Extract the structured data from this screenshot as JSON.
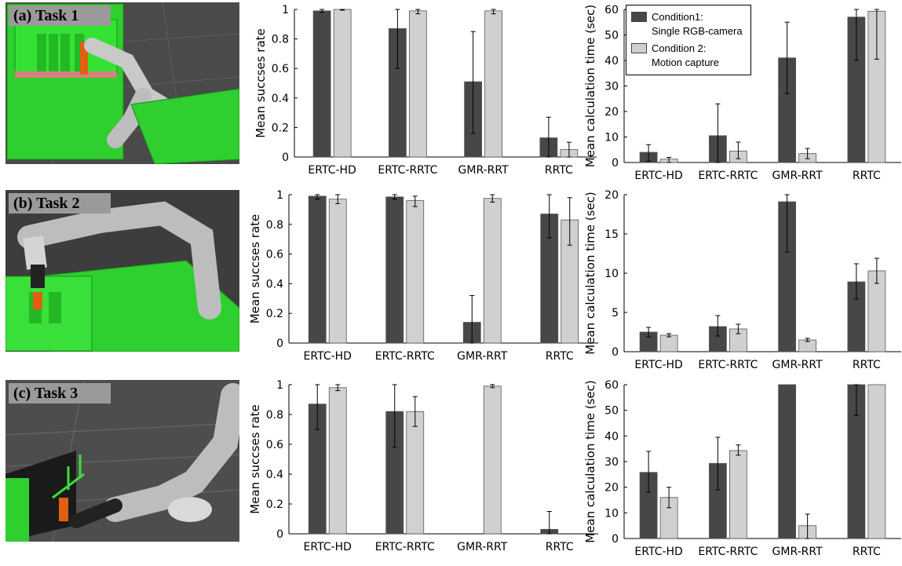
{
  "colors": {
    "condition1": "#474747",
    "condition2": "#d0d0d0"
  },
  "tasks": [
    {
      "label": "(a) Task 1",
      "scene": "robot-arm-bookshelf-scene"
    },
    {
      "label": "(b) Task 2",
      "scene": "robot-arm-box-scene"
    },
    {
      "label": "(c) Task 3",
      "scene": "robot-arm-wall-scene"
    }
  ],
  "legend": {
    "condition1_line1": "Condition1:",
    "condition1_line2": "Single RGB-camera",
    "condition2_line1": "Condition 2:",
    "condition2_line2": "Motion capture"
  },
  "chart_data": [
    {
      "type": "bar",
      "task": "(a) Task 1",
      "ylabel": "Mean succses rate",
      "ylim": [
        0,
        1
      ],
      "yticks": [
        0,
        0.2,
        0.4,
        0.6,
        0.8,
        1
      ],
      "ytick_labels": [
        "0",
        "0.2",
        "0.4",
        "0.6",
        "0.8",
        "1"
      ],
      "categories": [
        "ERTC-HD",
        "ERTC-RRTC",
        "GMR-RRT",
        "RRTC"
      ],
      "series": [
        {
          "name": "Condition1: Single RGB-camera",
          "values": [
            0.99,
            0.87,
            0.51,
            0.13
          ],
          "err_low": [
            0.98,
            0.6,
            0.16,
            0.0
          ],
          "err_high": [
            1.0,
            1.0,
            0.85,
            0.27
          ]
        },
        {
          "name": "Condition 2: Motion capture",
          "values": [
            1.0,
            0.99,
            0.99,
            0.05
          ],
          "err_low": [
            0.995,
            0.97,
            0.97,
            0.0
          ],
          "err_high": [
            1.0,
            1.0,
            1.0,
            0.1
          ]
        }
      ]
    },
    {
      "type": "bar",
      "task": "(a) Task 1",
      "ylabel": "Mean calculation time (sec)",
      "ylim": [
        0,
        60
      ],
      "yticks": [
        0,
        10,
        20,
        30,
        40,
        50,
        60
      ],
      "ytick_labels": [
        "0",
        "10",
        "20",
        "30",
        "40",
        "50",
        "60"
      ],
      "categories": [
        "ERTC-HD",
        "ERTC-RRTC",
        "GMR-RRT",
        "RRTC"
      ],
      "series": [
        {
          "name": "Condition1: Single RGB-camera",
          "values": [
            4,
            10.5,
            41,
            57
          ],
          "err_low": [
            0.5,
            0,
            27,
            40
          ],
          "err_high": [
            7,
            23,
            55,
            60
          ]
        },
        {
          "name": "Condition 2: Motion capture",
          "values": [
            1.3,
            4.5,
            3.5,
            59.3
          ],
          "err_low": [
            0,
            1.5,
            1.5,
            40.5
          ],
          "err_high": [
            2,
            8,
            5.5,
            60
          ]
        }
      ]
    },
    {
      "type": "bar",
      "task": "(b) Task 2",
      "ylabel": "Mean succses rate",
      "ylim": [
        0,
        1
      ],
      "yticks": [
        0,
        0.2,
        0.4,
        0.6,
        0.8,
        1
      ],
      "ytick_labels": [
        "0",
        "0.2",
        "0.4",
        "0.6",
        "0.8",
        "1"
      ],
      "categories": [
        "ERTC-HD",
        "ERTC-RRTC",
        "GMR-RRT",
        "RRTC"
      ],
      "series": [
        {
          "name": "Condition1: Single RGB-camera",
          "values": [
            0.99,
            0.985,
            0.14,
            0.87
          ],
          "err_low": [
            0.97,
            0.97,
            0.0,
            0.71
          ],
          "err_high": [
            1.0,
            1.0,
            0.32,
            1.0
          ]
        },
        {
          "name": "Condition 2: Motion capture",
          "values": [
            0.97,
            0.96,
            0.975,
            0.83
          ],
          "err_low": [
            0.94,
            0.92,
            0.95,
            0.66
          ],
          "err_high": [
            1.0,
            0.99,
            1.0,
            0.98
          ]
        }
      ]
    },
    {
      "type": "bar",
      "task": "(b) Task 2",
      "ylabel": "Mean calculation time (sec)",
      "ylim": [
        0,
        20
      ],
      "yticks": [
        0,
        5,
        10,
        15,
        20
      ],
      "ytick_labels": [
        "0",
        "5",
        "10",
        "15",
        "20"
      ],
      "categories": [
        "ERTC-HD",
        "ERTC-RRTC",
        "GMR-RRT",
        "RRTC"
      ],
      "series": [
        {
          "name": "Condition1: Single RGB-camera",
          "values": [
            2.5,
            3.2,
            19.1,
            8.9
          ],
          "err_low": [
            1.9,
            2.0,
            12.7,
            6.7
          ],
          "err_high": [
            3.1,
            4.6,
            20,
            11.2
          ]
        },
        {
          "name": "Condition 2: Motion capture",
          "values": [
            2.1,
            2.9,
            1.5,
            10.3
          ],
          "err_low": [
            1.9,
            2.3,
            1.3,
            8.7
          ],
          "err_high": [
            2.3,
            3.5,
            1.7,
            11.9
          ]
        }
      ]
    },
    {
      "type": "bar",
      "task": "(c) Task 3",
      "ylabel": "Mean succses rate",
      "ylim": [
        0,
        1
      ],
      "yticks": [
        0,
        0.2,
        0.4,
        0.6,
        0.8,
        1
      ],
      "ytick_labels": [
        "0",
        "0.2",
        "0.4",
        "0.6",
        "0.8",
        "1"
      ],
      "categories": [
        "ERTC-HD",
        "ERTC-RRTC",
        "GMR-RRT",
        "RRTC"
      ],
      "series": [
        {
          "name": "Condition1: Single RGB-camera",
          "values": [
            0.87,
            0.82,
            0.0,
            0.03
          ],
          "err_low": [
            0.7,
            0.58,
            0.0,
            0.0
          ],
          "err_high": [
            1.0,
            1.0,
            0.0,
            0.15
          ]
        },
        {
          "name": "Condition 2: Motion capture",
          "values": [
            0.98,
            0.82,
            0.99,
            0.0
          ],
          "err_low": [
            0.96,
            0.72,
            0.98,
            0.0
          ],
          "err_high": [
            1.0,
            0.92,
            1.0,
            0.0
          ]
        }
      ]
    },
    {
      "type": "bar",
      "task": "(c) Task 3",
      "ylabel": "Mean calculation time (sec)",
      "ylim": [
        0,
        60
      ],
      "yticks": [
        0,
        10,
        20,
        30,
        40,
        50,
        60
      ],
      "ytick_labels": [
        "0",
        "10",
        "20",
        "30",
        "40",
        "50",
        "60"
      ],
      "categories": [
        "ERTC-HD",
        "ERTC-RRTC",
        "GMR-RRT",
        "RRTC"
      ],
      "series": [
        {
          "name": "Condition1: Single RGB-camera",
          "values": [
            25.8,
            29.3,
            60,
            60
          ],
          "err_low": [
            18,
            19,
            60,
            48
          ],
          "err_high": [
            34,
            39.5,
            60,
            60
          ]
        },
        {
          "name": "Condition 2: Motion capture",
          "values": [
            16,
            34.3,
            5,
            60
          ],
          "err_low": [
            12,
            32.5,
            0,
            60
          ],
          "err_high": [
            20,
            36.5,
            9.5,
            60
          ]
        }
      ]
    }
  ]
}
